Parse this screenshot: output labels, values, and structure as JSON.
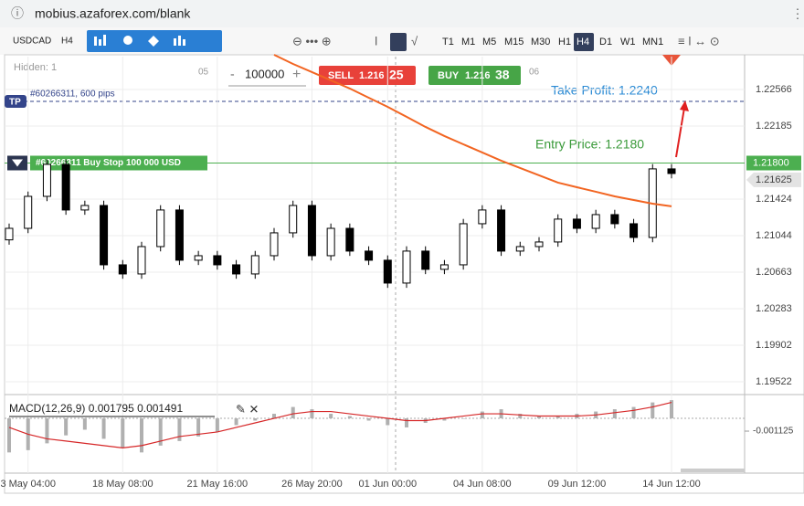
{
  "ui": {
    "url": "mobius.azaforex.com/blank",
    "symbol": "USDCAD",
    "period": "H4",
    "timeframes": [
      "T1",
      "M1",
      "M5",
      "M15",
      "M30",
      "H1",
      "H4",
      "D1",
      "W1",
      "MN1"
    ],
    "active_timeframe": "H4",
    "hidden": "Hidden: 1",
    "session_labels": [
      "05",
      "06"
    ],
    "minus": "-",
    "lot": "100000",
    "plus": "+",
    "sell": {
      "label": "SELL",
      "price": "1.216",
      "pips": "25"
    },
    "buy": {
      "label": "BUY",
      "price": "1.216",
      "pips": "38"
    },
    "tp_tag": "TP",
    "tp_info": "#60266311, 600 pips",
    "order_label": "#60266311 Buy Stop 100 000 USD",
    "take_profit": "Take Profit: 1.2240",
    "entry_text": "Entry Price: 1.2180"
  },
  "chart_data": {
    "type": "candlestick",
    "categories": [
      null,
      "3 May 04:00",
      null,
      null,
      null,
      null,
      "18 May 08:00",
      null,
      null,
      null,
      null,
      "21 May 16:00",
      null,
      null,
      null,
      null,
      "26 May 20:00",
      null,
      null,
      null,
      "01 Jun 00:00",
      null,
      null,
      null,
      null,
      "04 Jun 08:00",
      null,
      null,
      null,
      null,
      "09 Jun 12:00",
      null,
      null,
      null,
      null,
      "14 Jun 12:00"
    ],
    "open": [
      1.21,
      1.2112,
      1.21453,
      1.21786,
      1.21311,
      1.21358,
      1.2074,
      1.20645,
      1.2093,
      1.21311,
      1.20788,
      1.20835,
      1.2074,
      1.20645,
      1.20835,
      1.21073,
      1.21358,
      1.20835,
      1.2112,
      1.20883,
      1.20788,
      1.2055,
      1.20883,
      1.20693,
      1.2074,
      1.21168,
      1.21311,
      1.20883,
      1.2093,
      1.20978,
      1.21216,
      1.2112,
      1.21263,
      1.21168,
      1.21025,
      1.21739
    ],
    "high": [
      1.2117,
      1.21503,
      1.21836,
      1.21836,
      1.21408,
      1.21408,
      1.2079,
      1.2098,
      1.21361,
      1.21361,
      1.20885,
      1.20885,
      1.2079,
      1.20885,
      1.21123,
      1.21408,
      1.21408,
      1.2117,
      1.2117,
      1.20933,
      1.20838,
      1.20933,
      1.20933,
      1.2079,
      1.21218,
      1.21361,
      1.21361,
      1.2098,
      1.21028,
      1.21266,
      1.21266,
      1.21313,
      1.21313,
      1.21218,
      1.21789,
      1.21789
    ],
    "low": [
      1.2095,
      1.2107,
      1.21403,
      1.21261,
      1.21261,
      1.2069,
      1.20595,
      1.20595,
      1.2088,
      1.20738,
      1.20738,
      1.2069,
      1.20595,
      1.20595,
      1.20785,
      1.21023,
      1.20785,
      1.20785,
      1.20833,
      1.20738,
      1.205,
      1.205,
      1.20643,
      1.20643,
      1.2069,
      1.21118,
      1.20833,
      1.20833,
      1.2088,
      1.20928,
      1.2107,
      1.2107,
      1.21118,
      1.20975,
      1.20975,
      1.21641
    ],
    "close": [
      1.2112,
      1.21453,
      1.21786,
      1.21311,
      1.21358,
      1.2074,
      1.20645,
      1.2093,
      1.21311,
      1.20788,
      1.20835,
      1.2074,
      1.20645,
      1.20835,
      1.21073,
      1.21358,
      1.20835,
      1.2112,
      1.20883,
      1.20788,
      1.2055,
      1.20883,
      1.20693,
      1.2074,
      1.21168,
      1.21311,
      1.20883,
      1.2093,
      1.20978,
      1.21216,
      1.2112,
      1.21263,
      1.21168,
      1.21025,
      1.21739,
      1.21691
    ],
    "colors": {
      "up": "#ffffff",
      "down": "#000000"
    },
    "moving_average": {
      "color": "#f26522",
      "values": [
        null,
        null,
        null,
        null,
        null,
        null,
        null,
        null,
        null,
        null,
        null,
        null,
        null,
        null,
        1.22927,
        1.22832,
        1.22747,
        1.22661,
        1.22576,
        1.2248,
        1.22385,
        1.22281,
        1.22176,
        1.22081,
        1.21995,
        1.2191,
        1.21824,
        1.21748,
        1.21672,
        1.21596,
        1.21548,
        1.21501,
        1.21453,
        1.21415,
        1.21377,
        1.21349
      ]
    },
    "ylim": [
      1.19389,
      1.22946
    ],
    "yticks": [
      1.19522,
      1.19902,
      1.20283,
      1.20663,
      1.21044,
      1.21424,
      1.22185,
      1.22566
    ],
    "entry_price": {
      "value": 1.218,
      "label": "1.21800"
    },
    "current_price": 1.21625,
    "macd": {
      "title": "MACD(12,26,9) 0.001795 0.001491",
      "histogram": [
        -0.003,
        -0.0028,
        -0.0022,
        -0.0015,
        -0.001,
        -0.0018,
        -0.0026,
        -0.003,
        -0.0024,
        -0.002,
        -0.0016,
        -0.0012,
        -0.0006,
        -0.0002,
        0.0004,
        0.001,
        0.0008,
        0.0004,
        0.0002,
        -0.0002,
        -0.0006,
        -0.0008,
        -0.0004,
        -0.0002,
        0.0,
        0.0006,
        0.0008,
        0.0004,
        0.0002,
        0.0002,
        0.0004,
        0.0006,
        0.0008,
        0.001,
        0.0014,
        0.0016
      ],
      "signal": [
        -0.0008,
        -0.0014,
        -0.0018,
        -0.002,
        -0.0022,
        -0.0024,
        -0.0026,
        -0.0024,
        -0.002,
        -0.0016,
        -0.0014,
        -0.0012,
        -0.0008,
        -0.0004,
        0.0,
        0.0004,
        0.0006,
        0.0006,
        0.0004,
        0.0002,
        0.0,
        -0.0002,
        -0.0002,
        0.0,
        0.0002,
        0.0004,
        0.0004,
        0.0003,
        0.0002,
        0.0002,
        0.0002,
        0.0003,
        0.0005,
        0.0007,
        0.001,
        0.0014
      ],
      "histogram_color": "#b0b0b0",
      "signal_color": "#d62728",
      "ylim": [
        -0.00466,
        0.00177
      ],
      "yticks": [
        -0.001125
      ]
    }
  }
}
